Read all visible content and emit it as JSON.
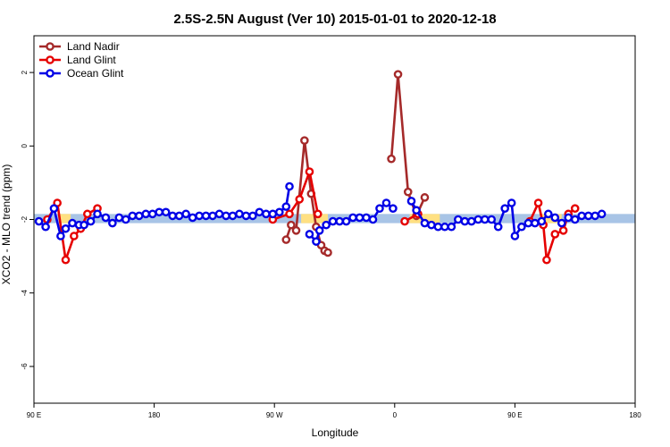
{
  "chart_data": {
    "type": "line",
    "title": "2.5S-2.5N August (Ver 10)   2015-01-01 to 2020-12-18",
    "xlabel": "Longitude",
    "ylabel": "XCO2 - MLO trend (ppm)",
    "xlim": [
      0,
      360
    ],
    "ylim": [
      -7,
      3
    ],
    "x_ticks": [
      {
        "value": 0,
        "label": "90 E"
      },
      {
        "value": 72,
        "label": "180"
      },
      {
        "value": 144,
        "label": "90 W"
      },
      {
        "value": 216,
        "label": "0"
      },
      {
        "value": 288,
        "label": "90 E"
      },
      {
        "value": 360,
        "label": "180"
      }
    ],
    "y_ticks": [
      {
        "value": 2,
        "label": "2"
      },
      {
        "value": 0,
        "label": "0"
      },
      {
        "value": -2,
        "label": "-2"
      },
      {
        "value": -4,
        "label": "-4"
      },
      {
        "value": -6,
        "label": "-6"
      }
    ],
    "legend_position": "top-left",
    "band": {
      "y_low": -2.1,
      "y_high": -1.85,
      "blue_color": "#a8c4e6",
      "yellow_color": "#ffe082",
      "yellow_x_ranges": [
        [
          15,
          22
        ],
        [
          160,
          176
        ],
        [
          225,
          243
        ],
        [
          303,
          316
        ]
      ]
    },
    "series": [
      {
        "name": "Land Nadir",
        "color": "#a52a2a",
        "segments": [
          [
            [
              151,
              -2.55
            ],
            [
              154,
              -2.15
            ],
            [
              157,
              -2.3
            ],
            [
              162,
              0.15
            ],
            [
              166,
              -1.3
            ],
            [
              169,
              -2.2
            ],
            [
              172,
              -2.7
            ],
            [
              174,
              -2.85
            ],
            [
              176,
              -2.9
            ]
          ],
          [
            [
              214,
              -0.35
            ],
            [
              218,
              1.95
            ],
            [
              224,
              -1.25
            ],
            [
              229,
              -1.9
            ],
            [
              234,
              -1.4
            ]
          ]
        ]
      },
      {
        "name": "Land Glint",
        "color": "#e60000",
        "segments": [
          [
            [
              8,
              -2.0
            ],
            [
              14,
              -1.55
            ],
            [
              19,
              -3.1
            ],
            [
              24,
              -2.45
            ],
            [
              28,
              -2.25
            ],
            [
              32,
              -1.85
            ],
            [
              38,
              -1.7
            ]
          ],
          [
            [
              143,
              -2.0
            ],
            [
              153,
              -1.85
            ],
            [
              159,
              -1.45
            ],
            [
              165,
              -0.7
            ],
            [
              170,
              -1.85
            ]
          ],
          [
            [
              222,
              -2.05
            ],
            [
              230,
              -1.85
            ]
          ],
          [
            [
              297,
              -2.05
            ],
            [
              302,
              -1.55
            ],
            [
              305,
              -2.15
            ],
            [
              307,
              -3.1
            ],
            [
              312,
              -2.4
            ],
            [
              317,
              -2.3
            ],
            [
              320,
              -1.85
            ],
            [
              324,
              -1.7
            ]
          ]
        ]
      },
      {
        "name": "Ocean Glint",
        "color": "#0000e6",
        "segments": [
          [
            [
              3,
              -2.05
            ],
            [
              7,
              -2.2
            ],
            [
              12,
              -1.7
            ],
            [
              16,
              -2.45
            ],
            [
              19,
              -2.25
            ],
            [
              23,
              -2.1
            ],
            [
              27,
              -2.15
            ],
            [
              30,
              -2.15
            ],
            [
              34,
              -2.05
            ],
            [
              38,
              -1.85
            ],
            [
              43,
              -1.95
            ],
            [
              47,
              -2.1
            ],
            [
              51,
              -1.95
            ],
            [
              55,
              -2.0
            ],
            [
              59,
              -1.9
            ],
            [
              63,
              -1.9
            ],
            [
              67,
              -1.85
            ],
            [
              71,
              -1.85
            ],
            [
              75,
              -1.8
            ],
            [
              79,
              -1.8
            ],
            [
              83,
              -1.9
            ],
            [
              87,
              -1.9
            ],
            [
              91,
              -1.85
            ],
            [
              95,
              -1.95
            ],
            [
              99,
              -1.9
            ],
            [
              103,
              -1.9
            ],
            [
              107,
              -1.9
            ],
            [
              111,
              -1.85
            ],
            [
              115,
              -1.9
            ],
            [
              119,
              -1.9
            ],
            [
              123,
              -1.85
            ],
            [
              127,
              -1.9
            ],
            [
              131,
              -1.9
            ],
            [
              135,
              -1.8
            ],
            [
              139,
              -1.85
            ],
            [
              143,
              -1.85
            ],
            [
              147,
              -1.8
            ],
            [
              151,
              -1.65
            ],
            [
              153,
              -1.1
            ]
          ],
          [
            [
              165,
              -2.4
            ],
            [
              169,
              -2.6
            ],
            [
              171,
              -2.3
            ],
            [
              175,
              -2.15
            ],
            [
              179,
              -2.05
            ],
            [
              183,
              -2.05
            ],
            [
              187,
              -2.05
            ],
            [
              191,
              -1.95
            ],
            [
              195,
              -1.95
            ],
            [
              199,
              -1.95
            ],
            [
              203,
              -2.0
            ],
            [
              207,
              -1.7
            ],
            [
              211,
              -1.55
            ],
            [
              215,
              -1.7
            ]
          ],
          [
            [
              226,
              -1.5
            ],
            [
              229,
              -1.75
            ],
            [
              234,
              -2.1
            ],
            [
              238,
              -2.15
            ],
            [
              242,
              -2.2
            ],
            [
              246,
              -2.2
            ],
            [
              250,
              -2.2
            ],
            [
              254,
              -2.0
            ],
            [
              258,
              -2.05
            ],
            [
              262,
              -2.05
            ],
            [
              266,
              -2.0
            ],
            [
              270,
              -2.0
            ],
            [
              274,
              -2.0
            ],
            [
              278,
              -2.2
            ],
            [
              282,
              -1.7
            ],
            [
              286,
              -1.55
            ],
            [
              288,
              -2.45
            ],
            [
              292,
              -2.2
            ],
            [
              296,
              -2.1
            ],
            [
              300,
              -2.1
            ],
            [
              304,
              -2.05
            ],
            [
              308,
              -1.85
            ],
            [
              312,
              -1.95
            ],
            [
              316,
              -2.1
            ],
            [
              320,
              -1.95
            ],
            [
              324,
              -2.0
            ],
            [
              328,
              -1.9
            ],
            [
              332,
              -1.9
            ],
            [
              336,
              -1.9
            ],
            [
              340,
              -1.85
            ]
          ]
        ]
      }
    ]
  }
}
